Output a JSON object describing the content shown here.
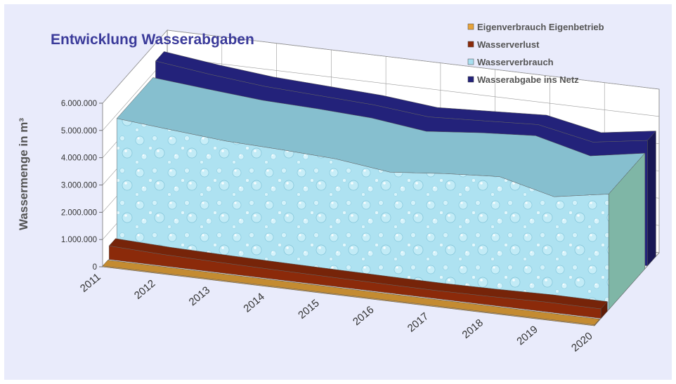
{
  "chart_data": {
    "type": "area",
    "title": "Entwicklung Wasserabgaben",
    "ylabel": "Wassermenge in m³",
    "xlabel": "",
    "ylim": [
      0,
      6000000
    ],
    "yticks": [
      "0",
      "1.000.000",
      "2.000.000",
      "3.000.000",
      "4.000.000",
      "5.000.000",
      "6.000.000"
    ],
    "categories": [
      "2011",
      "2012",
      "2013",
      "2014",
      "2015",
      "2016",
      "2017",
      "2018",
      "2019",
      "2020"
    ],
    "grid": true,
    "legend_position": "top-right",
    "series": [
      {
        "name": "Eigenverbrauch Eigenbetrieb",
        "color": "#e7a33a",
        "values": [
          30000,
          30000,
          30000,
          30000,
          30000,
          30000,
          30000,
          30000,
          30000,
          30000
        ]
      },
      {
        "name": "Wasserverlust",
        "color": "#8b2a0a",
        "values": [
          500000,
          420000,
          380000,
          350000,
          330000,
          310000,
          300000,
          320000,
          360000,
          350000
        ]
      },
      {
        "name": "Wasserverbrauch",
        "color": "#a8dff0",
        "values": [
          4850000,
          4670000,
          4500000,
          4430000,
          4330000,
          4080000,
          4270000,
          4400000,
          3900000,
          4240000
        ]
      },
      {
        "name": "Wasserabgabe ins Netz",
        "color": "#23227a",
        "values": [
          5350000,
          5100000,
          4900000,
          4800000,
          4700000,
          4500000,
          4600000,
          4700000,
          4300000,
          4600000
        ]
      }
    ]
  }
}
